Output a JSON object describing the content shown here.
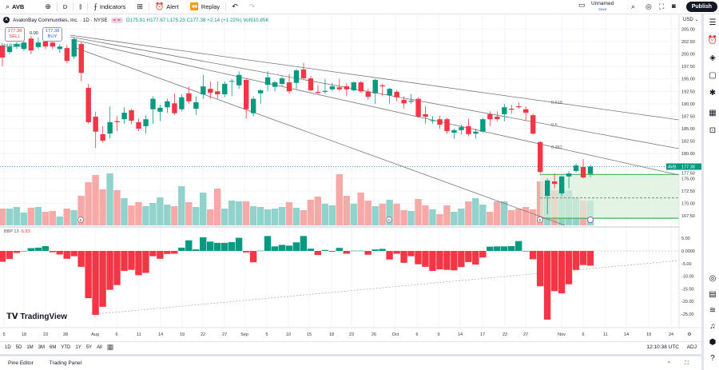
{
  "toolbar": {
    "symbol": "AVB",
    "interval": "D",
    "indicators_label": "Indicators",
    "alert_label": "Alert",
    "replay_label": "Replay",
    "layout_name": "Unnamed",
    "layout_status": "Save",
    "publish_label": "Publish"
  },
  "legend": {
    "title": "AvalonBay Communities, Inc. · 1D · NYSE",
    "ohlc": "O175.91 H177.67 L175.23 C177.38 +2.14 (+1.22%) Vol910.85K",
    "sell_price": "177.38",
    "sell_label": "SELL",
    "buy_price": "177.38",
    "buy_label": "BUY",
    "spread": "0.00",
    "volume_label": "Vol 910.85K"
  },
  "price_axis": {
    "currency": "USD",
    "ticks": [
      "205.00",
      "202.50",
      "200.00",
      "197.50",
      "195.00",
      "192.50",
      "190.00",
      "187.50",
      "185.00",
      "182.50",
      "180.00",
      "177.50",
      "175.00",
      "172.50",
      "170.00",
      "167.50"
    ],
    "last_price_symbol": "AVB",
    "last_price": "177.38"
  },
  "bbp_axis": {
    "ticks": [
      "5.00",
      "0.0000",
      "-5.00",
      "-10.00",
      "-15.00",
      "-20.00",
      "-25.00"
    ]
  },
  "indicator": {
    "label": "BBP 13",
    "value": "-5.83"
  },
  "fib_labels": [
    "0.618",
    "0.5",
    "0.382"
  ],
  "time_axis": [
    "5",
    "18",
    "23",
    "28",
    "Aug",
    "6",
    "11",
    "14",
    "19",
    "22",
    "27",
    "Sep",
    "5",
    "10",
    "15",
    "18",
    "23",
    "26",
    "Oct",
    "6",
    "9",
    "14",
    "17",
    "22",
    "27",
    "Nov",
    "6",
    "11",
    "14",
    "19",
    "24"
  ],
  "event_markers": [
    "E",
    "D",
    "E"
  ],
  "range_buttons": [
    "1D",
    "5D",
    "1M",
    "3M",
    "6M",
    "YTD",
    "1Y",
    "5Y",
    "All"
  ],
  "clock": "12:10:38 UTC",
  "adj_label": "ADJ",
  "bottom_tabs": [
    "Pine Editor",
    "Trading Panel"
  ],
  "brand": "TradingView",
  "colors": {
    "up": "#089981",
    "down": "#f23645",
    "up_volume": "#92d2cc",
    "down_volume": "#f7a9a7",
    "zone": "#d8f0d8",
    "zone_line": "#4caf50"
  },
  "chart_data": {
    "type": "candlestick",
    "ylim": [
      166,
      206
    ],
    "candles": [
      [
        201.7,
        202.2,
        197.5,
        199.3
      ],
      [
        200.4,
        201.9,
        200.0,
        201.5
      ],
      [
        201.5,
        202.4,
        201.0,
        202.0
      ],
      [
        201.0,
        202.7,
        200.6,
        202.3
      ],
      [
        203.1,
        203.6,
        200.0,
        200.7
      ],
      [
        201.4,
        203.3,
        201.0,
        202.3
      ],
      [
        202.5,
        203.0,
        201.0,
        201.5
      ],
      [
        202.3,
        202.8,
        201.0,
        201.5
      ],
      [
        201.0,
        202.0,
        200.2,
        201.5
      ],
      [
        201.2,
        201.8,
        198.2,
        198.6
      ],
      [
        199.5,
        203.3,
        199.0,
        203.0
      ],
      [
        202.0,
        202.4,
        194.5,
        196.2
      ],
      [
        193.2,
        194.0,
        186.0,
        186.3
      ],
      [
        187.4,
        188.4,
        181.1,
        184.4
      ],
      [
        183.9,
        185.5,
        182.2,
        182.6
      ],
      [
        184.0,
        189.5,
        183.0,
        186.3
      ],
      [
        186.5,
        187.5,
        184.5,
        186.3
      ],
      [
        186.9,
        189.3,
        186.0,
        188.2
      ],
      [
        188.7,
        189.0,
        185.9,
        186.6
      ],
      [
        186.3,
        187.0,
        184.5,
        185.0
      ],
      [
        185.5,
        187.8,
        184.0,
        186.9
      ],
      [
        188.9,
        191.5,
        186.0,
        191.0
      ],
      [
        188.4,
        189.8,
        186.5,
        189.2
      ],
      [
        189.3,
        191.0,
        188.2,
        190.5
      ],
      [
        190.1,
        192.0,
        187.8,
        188.1
      ],
      [
        188.9,
        191.9,
        188.5,
        191.3
      ],
      [
        192.1,
        193.5,
        190.0,
        190.5
      ],
      [
        189.0,
        191.5,
        187.7,
        190.3
      ],
      [
        191.9,
        195.8,
        191.0,
        193.5
      ],
      [
        193.0,
        194.5,
        191.0,
        192.2
      ],
      [
        192.5,
        194.5,
        191.0,
        191.9
      ],
      [
        191.9,
        194.5,
        191.3,
        194.0
      ],
      [
        194.5,
        195.0,
        191.5,
        194.6
      ],
      [
        193.7,
        196.5,
        193.0,
        195.8
      ],
      [
        194.8,
        195.0,
        187.0,
        188.9
      ],
      [
        188.1,
        191.5,
        187.5,
        191.0
      ],
      [
        192.1,
        193.0,
        190.0,
        192.7
      ],
      [
        193.8,
        196.5,
        192.5,
        195.3
      ],
      [
        193.4,
        194.6,
        192.5,
        194.3
      ],
      [
        194.0,
        195.5,
        193.5,
        195.1
      ],
      [
        194.3,
        196.0,
        192.0,
        192.5
      ],
      [
        194.2,
        197.0,
        193.0,
        196.7
      ],
      [
        196.9,
        198.2,
        195.0,
        195.1
      ],
      [
        195.1,
        195.6,
        192.5,
        192.7
      ],
      [
        192.4,
        193.8,
        192.0,
        192.2
      ],
      [
        192.4,
        195.0,
        192.0,
        192.6
      ],
      [
        192.9,
        194.2,
        192.5,
        193.5
      ],
      [
        193.3,
        195.0,
        192.5,
        192.9
      ],
      [
        193.5,
        194.2,
        191.5,
        192.9
      ],
      [
        192.7,
        194.5,
        192.5,
        194.3
      ],
      [
        194.3,
        194.6,
        192.2,
        192.5
      ],
      [
        192.4,
        193.0,
        190.8,
        191.4
      ],
      [
        192.1,
        195.0,
        190.0,
        194.8
      ],
      [
        193.7,
        194.0,
        191.5,
        193.5
      ],
      [
        191.7,
        193.2,
        190.0,
        193.0
      ],
      [
        192.4,
        192.8,
        190.5,
        191.3
      ],
      [
        190.8,
        191.5,
        189.0,
        190.1
      ],
      [
        190.4,
        192.0,
        190.0,
        190.6
      ],
      [
        191.0,
        191.3,
        187.2,
        187.4
      ],
      [
        187.9,
        189.5,
        186.0,
        187.4
      ],
      [
        186.6,
        187.5,
        186.0,
        186.7
      ],
      [
        186.9,
        187.6,
        185.0,
        185.8
      ],
      [
        186.9,
        187.2,
        184.0,
        184.5
      ],
      [
        184.2,
        185.0,
        183.0,
        184.7
      ],
      [
        184.7,
        185.8,
        183.8,
        185.3
      ],
      [
        185.5,
        187.0,
        183.5,
        183.9
      ],
      [
        184.0,
        185.0,
        183.0,
        184.4
      ],
      [
        184.4,
        187.2,
        184.2,
        186.9
      ],
      [
        187.9,
        188.5,
        185.5,
        186.9
      ],
      [
        187.4,
        188.5,
        186.5,
        186.9
      ],
      [
        187.9,
        190.0,
        186.5,
        189.3
      ],
      [
        189.0,
        189.8,
        188.0,
        188.8
      ],
      [
        189.5,
        190.3,
        189.0,
        189.3
      ],
      [
        188.9,
        189.5,
        186.5,
        188.2
      ],
      [
        187.7,
        188.0,
        183.8,
        184.0
      ],
      [
        182.3,
        182.5,
        176.0,
        176.3
      ],
      [
        171.5,
        175.0,
        167.8,
        174.6
      ],
      [
        174.4,
        176.0,
        173.0,
        173.9
      ],
      [
        172.0,
        175.6,
        171.5,
        175.4
      ],
      [
        175.4,
        176.5,
        173.0,
        176.0
      ],
      [
        176.5,
        178.0,
        176.2,
        177.6
      ],
      [
        177.3,
        178.9,
        175.0,
        175.2
      ],
      [
        175.91,
        177.67,
        175.23,
        177.38
      ]
    ],
    "volume_k": [
      617,
      617,
      676,
      470,
      647,
      676,
      500,
      529,
      323,
      617,
      559,
      1088,
      1588,
      1852,
      1323,
      1911,
      1294,
      1000,
      735,
      853,
      706,
      823,
      1029,
      764,
      706,
      1441,
      853,
      676,
      1205,
      588,
      1352,
      617,
      911,
      882,
      882,
      706,
      676,
      588,
      617,
      676,
      853,
      647,
      559,
      941,
      1058,
      794,
      735,
      1882,
      1088,
      794,
      1205,
      911,
      706,
      794,
      941,
      794,
      559,
      529,
      970,
      735,
      588,
      412,
      735,
      500,
      617,
      882,
      1000,
      764,
      500,
      882,
      882,
      559,
      617,
      676,
      588,
      1617,
      1147,
      1294,
      1323,
      1294,
      1029,
      911,
      910.85
    ],
    "bbp": [
      -4.3,
      -3.2,
      -0.8,
      -0.1,
      1.1,
      1.3,
      1.9,
      -0.5,
      -1.4,
      -3.1,
      -2.1,
      -6.3,
      -18.7,
      -25.3,
      -22.1,
      -15.4,
      -13.5,
      -7.9,
      -7.5,
      -9.6,
      -8.7,
      -2.1,
      -3.1,
      -1.2,
      -1.1,
      1.3,
      4.2,
      0.6,
      5.4,
      3.7,
      3.2,
      3.2,
      3.5,
      5.2,
      -0.6,
      -4.5,
      0.1,
      5.9,
      1.8,
      2.4,
      2.1,
      3.4,
      5.9,
      0.9,
      -1.6,
      0.4,
      -0.3,
      1.2,
      -1.1,
      0.1,
      0.1,
      -1.5,
      0.6,
      0.8,
      -3.4,
      -1.1,
      -4.7,
      -2.1,
      -5.3,
      -6.3,
      -7.9,
      -7.3,
      -7.5,
      -7.7,
      -6.4,
      -4.4,
      -5.4,
      -2.6,
      1.7,
      1.8,
      1.8,
      1.9,
      3.9,
      0,
      -3.3,
      -14.0,
      -27.2,
      -15.9,
      -16.8,
      -13.2,
      -7.5,
      -5.6,
      -5.83
    ],
    "bbp_ylim": [
      -27.2,
      5.9
    ],
    "zone": {
      "top": 175.8,
      "mid": 171.1,
      "bottom": 167.0
    }
  }
}
